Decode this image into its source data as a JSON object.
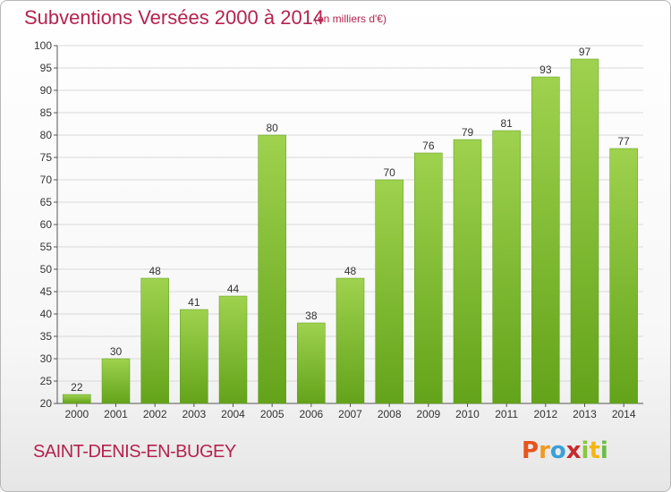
{
  "header": {
    "title": "Subventions Versées 2000 à 2014",
    "unit": "(en milliers d'€)"
  },
  "footer": {
    "place": "SAINT-DENIS-EN-BUGEY",
    "logo_letters": [
      "P",
      "r",
      "o",
      "x",
      "i",
      "t",
      "i"
    ],
    "logo_colors": [
      "#e8541c",
      "#f29a1f",
      "#3aa0d8",
      "#c6292e",
      "#8dc63f",
      "#f4b616",
      "#6bbd45"
    ]
  },
  "chart_data": {
    "type": "bar",
    "title": "Subventions Versées 2000 à 2014",
    "xlabel": "",
    "ylabel": "",
    "categories": [
      "2000",
      "2001",
      "2002",
      "2003",
      "2004",
      "2005",
      "2006",
      "2007",
      "2008",
      "2009",
      "2010",
      "2011",
      "2012",
      "2013",
      "2014"
    ],
    "values": [
      22,
      30,
      48,
      41,
      44,
      80,
      38,
      48,
      70,
      76,
      79,
      81,
      93,
      97,
      77
    ],
    "ylim": [
      20,
      100
    ],
    "yticks": [
      20,
      25,
      30,
      35,
      40,
      45,
      50,
      55,
      60,
      65,
      70,
      75,
      80,
      85,
      90,
      95,
      100
    ],
    "grid": true,
    "legend": "none",
    "bar_color": "#7dbb2e",
    "grid_color": "#d9d9d9"
  }
}
